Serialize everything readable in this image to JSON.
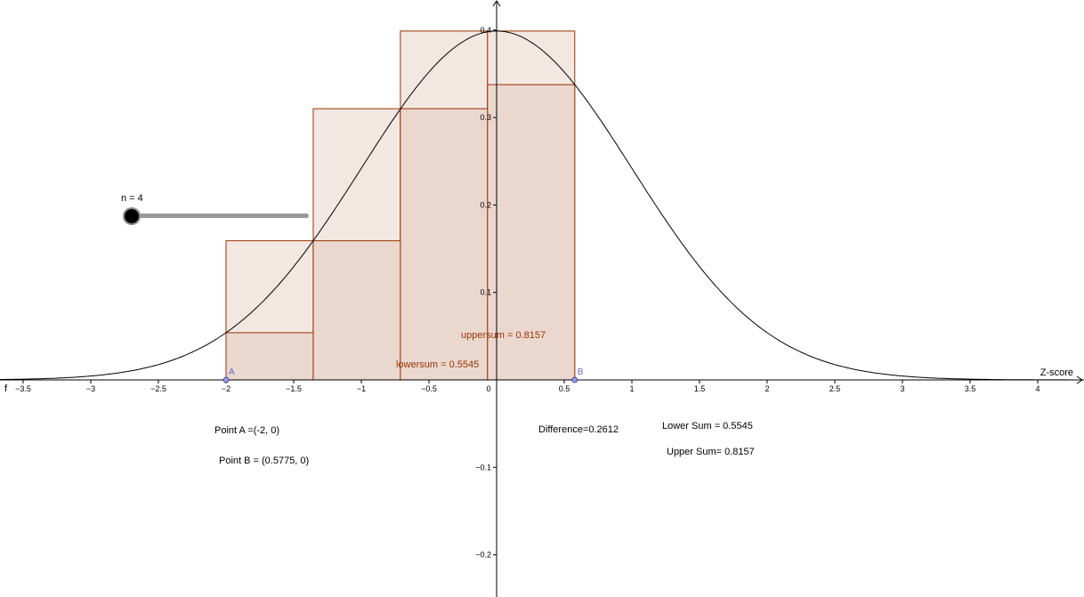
{
  "function_name": "f",
  "x_axis_label": "Z-score",
  "slider": {
    "label": "n = 4",
    "value": 4
  },
  "points": [
    {
      "name": "A",
      "x": -2,
      "y": 0
    },
    {
      "name": "B",
      "x": 0.5775,
      "y": 0
    }
  ],
  "labels": {
    "uppersum": "uppersum = 0.8157",
    "lowersum": "lowersum = 0.5545",
    "point_a": "Point A =(-2, 0)",
    "point_b": "Point B = (0.5775, 0)",
    "difference": "Difference=0.2612",
    "lower_sum": "Lower Sum = 0.5545",
    "upper_sum": "Upper Sum= 0.8157"
  },
  "colors": {
    "upper_fill": "#f3e7e2",
    "lower_fill": "#ead8cf",
    "bar_stroke": "#993300",
    "curve": "#000000",
    "point": "#9999ff"
  },
  "chart_data": {
    "type": "area",
    "function": "standard normal density",
    "n": 4,
    "interval": [
      -2,
      0.5775
    ],
    "xlim": [
      -3.7,
      4.4
    ],
    "ylim": [
      -0.245,
      0.43
    ],
    "x_ticks": [
      -3.5,
      -3,
      -2.5,
      -2,
      -1.5,
      -1,
      -0.5,
      0,
      0.5,
      1,
      1.5,
      2,
      2.5,
      3,
      3.5,
      4
    ],
    "x_tick_labels": [
      "−3.5",
      "−3",
      "−2.5",
      "−2",
      "−1.5",
      "−1",
      "−0.5",
      "0",
      "0.5",
      "1",
      "1.5",
      "2",
      "2.5",
      "3",
      "3.5",
      "4"
    ],
    "y_ticks": [
      0.4,
      0.3,
      0.2,
      0.1,
      -0.1,
      -0.2
    ],
    "y_tick_labels": [
      "0.4",
      "0.3",
      "0.2",
      "0.1",
      "−0.1",
      "−0.2"
    ],
    "upper_bars": [
      {
        "x0": -2,
        "x1": -1.3556,
        "height": 0.1591
      },
      {
        "x0": -1.3556,
        "x1": -0.7113,
        "height": 0.3101
      },
      {
        "x0": -0.7113,
        "x1": -0.0669,
        "height": 0.3989
      },
      {
        "x0": -0.0669,
        "x1": 0.5775,
        "height": 0.3989
      }
    ],
    "lower_bars": [
      {
        "x0": -2,
        "x1": -1.3556,
        "height": 0.054
      },
      {
        "x0": -1.3556,
        "x1": -0.7113,
        "height": 0.1591
      },
      {
        "x0": -0.7113,
        "x1": -0.0669,
        "height": 0.3101
      },
      {
        "x0": -0.0669,
        "x1": 0.5775,
        "height": 0.3376
      }
    ],
    "upper_sum": 0.8157,
    "lower_sum": 0.5545,
    "difference": 0.2612
  }
}
